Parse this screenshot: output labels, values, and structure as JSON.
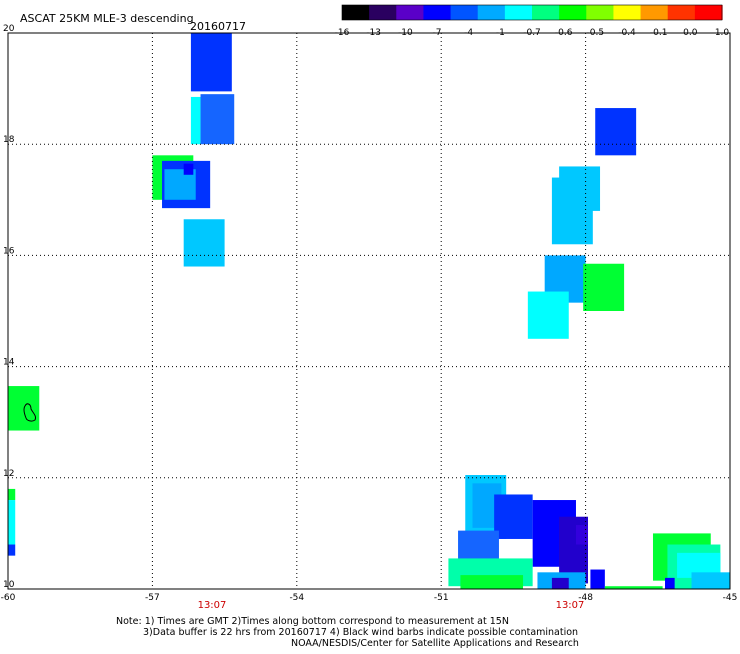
{
  "header": {
    "title": "ASCAT 25KM MLE-3 descending",
    "date": "20160717"
  },
  "colorbar": {
    "labels": [
      "-16",
      "-13",
      "-10",
      "-7",
      "-4",
      "-1",
      "-0.7",
      "-0.6",
      "-0.5",
      "-0.4",
      "-0.1",
      "0.0",
      "1.0"
    ],
    "colors": [
      "#000000",
      "#2a0060",
      "#5a00c8",
      "#0000ff",
      "#0055ff",
      "#00aaff",
      "#00ffff",
      "#00ff80",
      "#00ff00",
      "#80ff00",
      "#ffff00",
      "#ff9900",
      "#ff3300",
      "#ff0000"
    ]
  },
  "map": {
    "lon_ticks": [
      "-60",
      "-57",
      "-54",
      "-51",
      "-48",
      "-45"
    ],
    "lat_ticks": [
      "20",
      "18",
      "16",
      "14",
      "12",
      "10"
    ],
    "lon_range": [
      -60,
      -45
    ],
    "lat_range": [
      10,
      20
    ],
    "times": [
      "13:07",
      "13:07"
    ],
    "time_color": "#cc0000",
    "cell_colors": {
      "blue": "#0033ff",
      "medblue": "#1565ff",
      "cyan": "#00ffff",
      "lightblue": "#00c8ff",
      "skyblue": "#00a8ff",
      "green": "#00ff33",
      "darkblue": "#0000ff",
      "navy": "#2200cc",
      "violet": "#3300dd",
      "mint": "#00ffaa"
    }
  },
  "notes": {
    "line1": "Note: 1) Times are GMT 2)Times along bottom correspond to measurement at 15N",
    "line2": "3)Data buffer is 22 hrs from 20160717 4) Black wind barbs indicate possible contamination",
    "line3": "NOAA/NESDIS/Center for Satellite Applications and Research"
  }
}
